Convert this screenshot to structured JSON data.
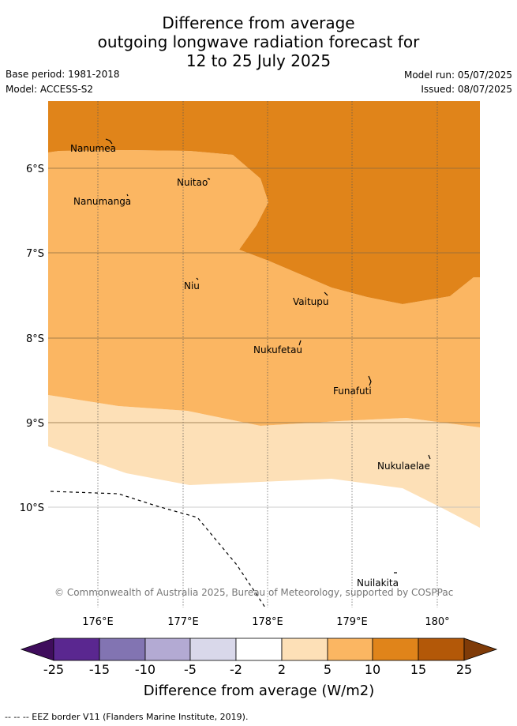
{
  "header": {
    "title_lines": [
      "Difference from average",
      "outgoing longwave radiation forecast for",
      "12 to 25 July 2025"
    ],
    "base_period": "Base period: 1981-2018",
    "model": "Model: ACCESS-S2",
    "model_run": "Model run: 05/07/2025",
    "issued": "Issued: 08/07/2025"
  },
  "map": {
    "lon_ticks": [
      "176°E",
      "177°E",
      "178°E",
      "179°E",
      "180°"
    ],
    "lat_ticks": [
      "6°S",
      "7°S",
      "8°S",
      "9°S",
      "10°S"
    ],
    "islands": [
      {
        "name": "Nanumea"
      },
      {
        "name": "Nuitao"
      },
      {
        "name": "Nanumanga"
      },
      {
        "name": "Niu"
      },
      {
        "name": "Vaitupu"
      },
      {
        "name": "Nukufetau"
      },
      {
        "name": "Funafuti"
      },
      {
        "name": "Nukulaelae"
      },
      {
        "name": "Nuilakita"
      }
    ],
    "copyright": "© Commonwealth of Australia 2025, Bureau of Meteorology, supported by COSPPac"
  },
  "colorbar": {
    "tick_labels": [
      "-25",
      "-15",
      "-10",
      "-5",
      "-2",
      "2",
      "5",
      "10",
      "15",
      "25"
    ],
    "colors": [
      "#3f0d5c",
      "#5a2790",
      "#8274b2",
      "#b3aad3",
      "#d9d8ea",
      "#ffffff",
      "#fde0b7",
      "#fbb662",
      "#e0841a",
      "#b35808",
      "#7f3b08"
    ],
    "title": "Difference from average (W/m2)"
  },
  "footer": {
    "eez_note": "-- -- -- EEZ border V11 (Flanders Marine Institute, 2019)."
  }
}
